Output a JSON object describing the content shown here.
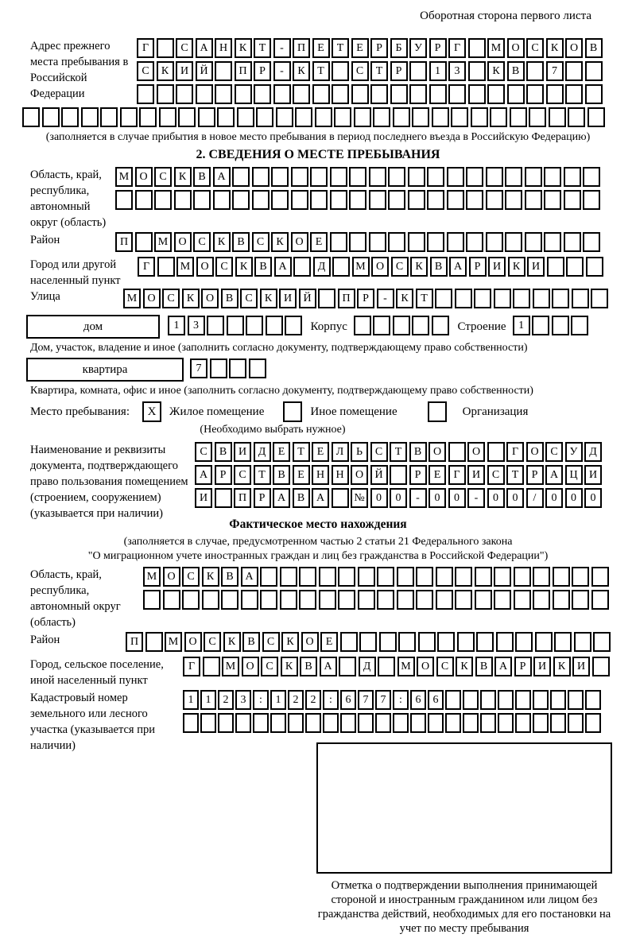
{
  "page": {
    "header_note": "Оборотная сторона первого листа"
  },
  "previous_address": {
    "label": "Адрес прежнего места пребывания в Российской Федерации",
    "line1": "Г САНКТ-ПЕТЕРБУРГ МОСКОВ",
    "line2": "СКИЙ ПР-КТ СТР 13 КВ 7",
    "line3": "",
    "line4": "",
    "note": "(заполняется в случае прибытия в новое место пребывания в период последнего въезда в Российскую Федерацию)"
  },
  "section2": {
    "title": "2. СВЕДЕНИЯ О МЕСТЕ ПРЕБЫВАНИЯ",
    "region": {
      "label": "Область, край, республика, автономный округ (область)",
      "line1": "МОСКВА",
      "line2": ""
    },
    "district": {
      "label": "Район",
      "value": "П МОСКВСКОЕ"
    },
    "city": {
      "label": "Город или другой населенный пункт",
      "value": "Г МОСКВА Д МОСКВАРИКИ"
    },
    "street": {
      "label": "Улица",
      "value": "МОСКОВСКИЙ ПР-КТ"
    },
    "house": {
      "box_label": "дом",
      "value": "13",
      "korpus_label": "Корпус",
      "korpus_value": "",
      "stroenie_label": "Строение",
      "stroenie_value": "1",
      "note": "Дом, участок, владение и иное (заполнить согласно документу, подтверждающему право собственности)"
    },
    "apartment": {
      "box_label": "квартира",
      "value": "7",
      "note": "Квартира, комната, офис и иное (заполнить согласно документу, подтверждающему право собственности)"
    },
    "place_type": {
      "label": "Место пребывания:",
      "options": [
        {
          "label": "Жилое помещение",
          "mark": "X"
        },
        {
          "label": "Иное помещение",
          "mark": ""
        },
        {
          "label": "Организация",
          "mark": ""
        }
      ],
      "note": "(Необходимо выбрать нужное)"
    },
    "document": {
      "label": "Наименование и реквизиты документа, подтверждающего право пользования помещением (строением, сооружением) (указывается при наличии)",
      "line1": "СВИДЕТЕЛЬСТВО О ГОСУД",
      "line2": "АРСТВЕННОЙ РЕГИСТРАЦИ",
      "line3": "И ПРАВА №00-00-00/000"
    }
  },
  "actual_location": {
    "title": "Фактическое место нахождения",
    "note_line1": "(заполняется в случае, предусмотренном частью 2 статьи 21 Федерального закона",
    "note_line2": "\"О миграционном учете иностранных граждан и лиц без гражданства в Российской Федерации\")",
    "region": {
      "label": "Область, край, республика, автономный округ (область)",
      "line1": "МОСКВА",
      "line2": ""
    },
    "district": {
      "label": "Район",
      "value": "П МОСКВСКОЕ"
    },
    "city": {
      "label": "Город, сельское поселение, иной населенный пункт",
      "value": "Г МОСКВА Д МОСКВАРИКИ"
    },
    "cadastral": {
      "label": "Кадастровый номер земельного или лесного участка (указывается при наличии)",
      "line1": "1123:122:677:66",
      "line2": ""
    }
  },
  "stamp_area": {
    "caption": "Отметка о подтверждении выполнения принимающей стороной и иностранным гражданином или лицом без гражданства действий, необходимых для его постановки на учет по месту пребывания"
  }
}
